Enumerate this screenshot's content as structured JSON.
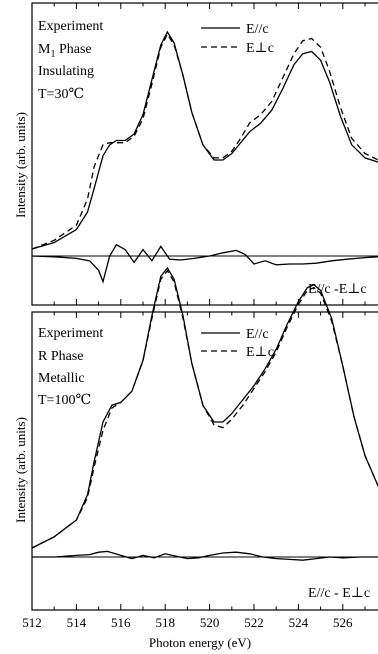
{
  "chart_data": [
    {
      "type": "line",
      "x_label": "Photon energy (eV)",
      "y_label": "Intensity (arb. units)",
      "x_range": [
        512,
        528
      ],
      "x_ticks": [
        512,
        514,
        516,
        518,
        520,
        522,
        524,
        526
      ],
      "annotation": {
        "lines": [
          "Experiment",
          "M",
          "1",
          " Phase",
          "Insulating",
          "T=30℃"
        ]
      },
      "legend_position": "top-right",
      "difference_label": "E//c -E⊥c",
      "series": [
        {
          "name": "E//c",
          "style": "solid",
          "x": [
            512,
            513,
            514,
            514.5,
            514.8,
            515.2,
            515.5,
            515.8,
            516.2,
            516.6,
            517,
            517.4,
            517.8,
            518.1,
            518.4,
            518.8,
            519.2,
            519.7,
            520.2,
            520.6,
            521,
            521.4,
            521.8,
            522.3,
            522.8,
            523.3,
            523.8,
            524.2,
            524.6,
            525,
            525.4,
            525.9,
            526.4,
            527,
            527.6
          ],
          "y": [
            0.0,
            0.03,
            0.09,
            0.17,
            0.28,
            0.43,
            0.48,
            0.5,
            0.5,
            0.53,
            0.62,
            0.78,
            0.94,
            1.0,
            0.95,
            0.8,
            0.63,
            0.48,
            0.41,
            0.41,
            0.44,
            0.49,
            0.54,
            0.58,
            0.64,
            0.74,
            0.85,
            0.9,
            0.91,
            0.87,
            0.77,
            0.61,
            0.48,
            0.42,
            0.4
          ]
        },
        {
          "name": "E⊥c",
          "style": "dashed",
          "x": [
            512,
            513,
            514,
            514.5,
            514.8,
            515.2,
            515.5,
            515.8,
            516.2,
            516.6,
            517,
            517.4,
            517.8,
            518.1,
            518.4,
            518.8,
            519.2,
            519.7,
            520.2,
            520.6,
            521,
            521.4,
            521.8,
            522.3,
            522.8,
            523.3,
            523.8,
            524.2,
            524.6,
            525,
            525.4,
            525.9,
            526.4,
            527,
            527.6
          ],
          "y": [
            0.0,
            0.04,
            0.11,
            0.23,
            0.38,
            0.48,
            0.49,
            0.49,
            0.49,
            0.52,
            0.6,
            0.76,
            0.93,
            0.99,
            0.94,
            0.8,
            0.63,
            0.48,
            0.42,
            0.42,
            0.45,
            0.51,
            0.58,
            0.62,
            0.68,
            0.79,
            0.9,
            0.96,
            0.97,
            0.93,
            0.82,
            0.65,
            0.51,
            0.44,
            0.41
          ]
        },
        {
          "name": "E//c -E⊥c",
          "style": "difference",
          "x": [
            512,
            513,
            514,
            514.6,
            515,
            515.2,
            515.5,
            515.8,
            516.2,
            516.6,
            517,
            517.4,
            517.8,
            518.2,
            518.7,
            519.3,
            520,
            520.6,
            521.2,
            521.6,
            522,
            522.5,
            523,
            523.6,
            524.2,
            524.8,
            525.5,
            526.2,
            527,
            527.6
          ],
          "y": [
            0.0,
            -0.005,
            -0.015,
            -0.03,
            -0.09,
            -0.16,
            0.0,
            0.07,
            0.04,
            -0.04,
            0.04,
            -0.03,
            0.06,
            -0.02,
            -0.025,
            -0.015,
            0.0,
            0.02,
            0.035,
            0.01,
            -0.05,
            -0.03,
            -0.055,
            -0.05,
            -0.05,
            -0.045,
            -0.03,
            -0.02,
            -0.01,
            -0.005
          ]
        }
      ]
    },
    {
      "type": "line",
      "x_label": "Photon energy (eV)",
      "y_label": "Intensity (arb. units)",
      "x_range": [
        512,
        528
      ],
      "x_ticks": [
        512,
        514,
        516,
        518,
        520,
        522,
        524,
        526
      ],
      "annotation": {
        "lines": [
          "Experiment",
          "R Phase",
          "Metallic",
          "T=100℃"
        ]
      },
      "legend_position": "top-right",
      "difference_label": "E//c - E⊥c",
      "series": [
        {
          "name": "E//c",
          "style": "solid",
          "x": [
            512,
            513,
            514,
            514.5,
            514.8,
            515.2,
            515.6,
            516,
            516.5,
            517,
            517.4,
            517.8,
            518.1,
            518.4,
            518.8,
            519.2,
            519.7,
            520.2,
            520.6,
            521,
            521.5,
            522,
            522.5,
            523,
            523.5,
            524,
            524.4,
            524.7,
            525,
            525.5,
            526,
            526.5,
            527,
            527.6
          ],
          "y": [
            0.0,
            0.04,
            0.1,
            0.19,
            0.31,
            0.45,
            0.51,
            0.52,
            0.56,
            0.67,
            0.83,
            0.97,
            1.0,
            0.96,
            0.83,
            0.66,
            0.51,
            0.45,
            0.45,
            0.48,
            0.53,
            0.58,
            0.64,
            0.71,
            0.8,
            0.88,
            0.93,
            0.94,
            0.92,
            0.82,
            0.65,
            0.47,
            0.33,
            0.22
          ]
        },
        {
          "name": "E⊥c",
          "style": "dashed",
          "x": [
            512,
            513,
            514,
            514.5,
            514.8,
            515.2,
            515.6,
            516,
            516.5,
            517,
            517.4,
            517.8,
            518.1,
            518.4,
            518.8,
            519.2,
            519.7,
            520.2,
            520.6,
            521,
            521.5,
            522,
            522.5,
            523,
            523.5,
            524,
            524.4,
            524.7,
            525,
            525.5,
            526,
            526.5,
            527,
            527.6
          ],
          "y": [
            0.0,
            0.04,
            0.1,
            0.18,
            0.29,
            0.42,
            0.5,
            0.52,
            0.56,
            0.67,
            0.82,
            0.96,
            0.99,
            0.95,
            0.82,
            0.66,
            0.51,
            0.44,
            0.43,
            0.46,
            0.51,
            0.57,
            0.63,
            0.7,
            0.79,
            0.87,
            0.92,
            0.93,
            0.91,
            0.81,
            0.65,
            0.47,
            0.33,
            0.22
          ]
        },
        {
          "name": "E//c - E⊥c",
          "style": "difference",
          "x": [
            512,
            513,
            514,
            514.6,
            515,
            515.4,
            516,
            516.5,
            517,
            517.5,
            518,
            518.5,
            519,
            519.5,
            520,
            520.6,
            521.2,
            521.8,
            522.4,
            523,
            523.6,
            524.2,
            524.8,
            525.4,
            526,
            526.8,
            527.6
          ],
          "y": [
            0.0,
            0.0,
            0.01,
            0.015,
            0.03,
            0.035,
            0.01,
            -0.01,
            0.01,
            -0.005,
            0.02,
            0.005,
            -0.01,
            -0.005,
            0.01,
            0.025,
            0.03,
            0.02,
            0.0,
            -0.01,
            -0.015,
            -0.02,
            -0.01,
            0.0,
            -0.005,
            0.0,
            0.0
          ]
        }
      ]
    }
  ]
}
